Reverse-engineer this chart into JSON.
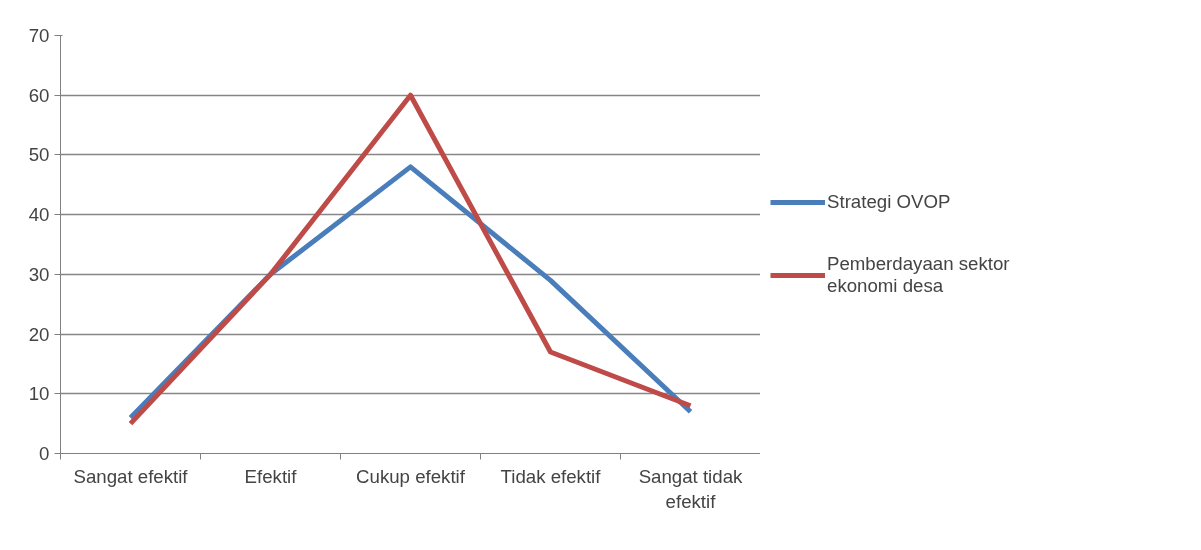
{
  "chart_data": {
    "type": "line",
    "categories": [
      "Sangat efektif",
      "Efektif",
      "Cukup efektif",
      "Tidak efektif",
      "Sangat tidak efektif"
    ],
    "series": [
      {
        "name": "Strategi OVOP",
        "color": "#4a7ebb",
        "values": [
          6,
          30,
          48,
          29,
          7
        ]
      },
      {
        "name": "Pemberdayaan sektor ekonomi desa",
        "color": "#be4b48",
        "values": [
          5,
          30,
          60,
          17,
          8
        ]
      }
    ],
    "ylim": [
      0,
      70
    ],
    "yticks": [
      0,
      10,
      20,
      30,
      40,
      50,
      60,
      70
    ],
    "grid": "y",
    "legend": "right",
    "marker": "none",
    "line_style": "solid"
  }
}
